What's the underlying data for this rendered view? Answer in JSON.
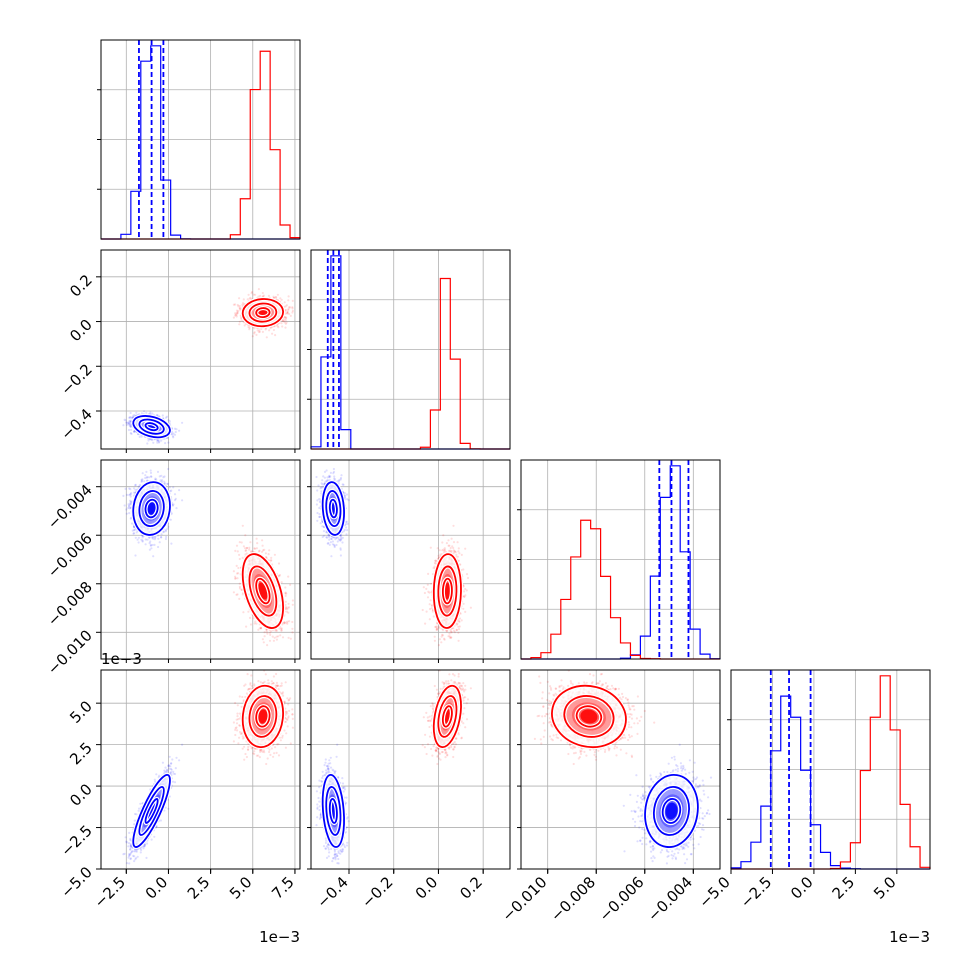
{
  "chart_data": {
    "type": "scatter",
    "subtype": "corner-plot",
    "parameters": 4,
    "series": [
      {
        "color": "#0000ff",
        "mean": [
          -0.001,
          -0.47,
          -0.0049,
          -0.0015
        ],
        "std": [
          0.0005,
          0.022,
          0.0005,
          0.001
        ]
      },
      {
        "color": "#ff0000",
        "mean": [
          0.0056,
          0.04,
          -0.0083,
          0.0042
        ],
        "std": [
          0.00055,
          0.028,
          0.0007,
          0.00085
        ]
      }
    ],
    "quantile_lines": {
      "color": "#0000ff",
      "style": "dashed",
      "panels": [
        {
          "param": 0,
          "values": [
            -0.00175,
            -0.001,
            -0.0003
          ]
        },
        {
          "param": 1,
          "values": [
            -0.495,
            -0.47,
            -0.445
          ]
        },
        {
          "param": 2,
          "values": [
            -0.0054,
            -0.0049,
            -0.0042
          ]
        },
        {
          "param": 3,
          "values": [
            -0.0026,
            -0.0015,
            -0.0002
          ]
        }
      ]
    },
    "axes": [
      {
        "param": 0,
        "range": [
          -0.004,
          0.0078
        ],
        "ticks": [
          -0.0025,
          0,
          0.0025,
          0.005,
          0.0075
        ],
        "tick_labels": [
          "−2.5",
          "0.0",
          "2.5",
          "5.0",
          "7.5"
        ],
        "offset_label": "1e−3"
      },
      {
        "param": 1,
        "range": [
          -0.57,
          0.32
        ],
        "ticks": [
          -0.4,
          -0.2,
          0.0,
          0.2
        ],
        "tick_labels": [
          "−0.4",
          "−0.2",
          "0.0",
          "0.2"
        ],
        "offset_label": ""
      },
      {
        "param": 2,
        "range": [
          -0.0111,
          -0.0029
        ],
        "ticks": [
          -0.01,
          -0.008,
          -0.006,
          -0.004
        ],
        "tick_labels": [
          "−0.010",
          "−0.008",
          "−0.006",
          "−0.004"
        ],
        "offset_label": ""
      },
      {
        "param": 3,
        "range": [
          -0.005,
          0.007
        ],
        "ticks": [
          -0.005,
          -0.0025,
          0,
          0.0025,
          0.005
        ],
        "tick_labels": [
          "−5.0",
          "−2.5",
          "0.0",
          "2.5",
          "5.0"
        ],
        "offset_label": "1e−3"
      }
    ],
    "grid": true
  }
}
